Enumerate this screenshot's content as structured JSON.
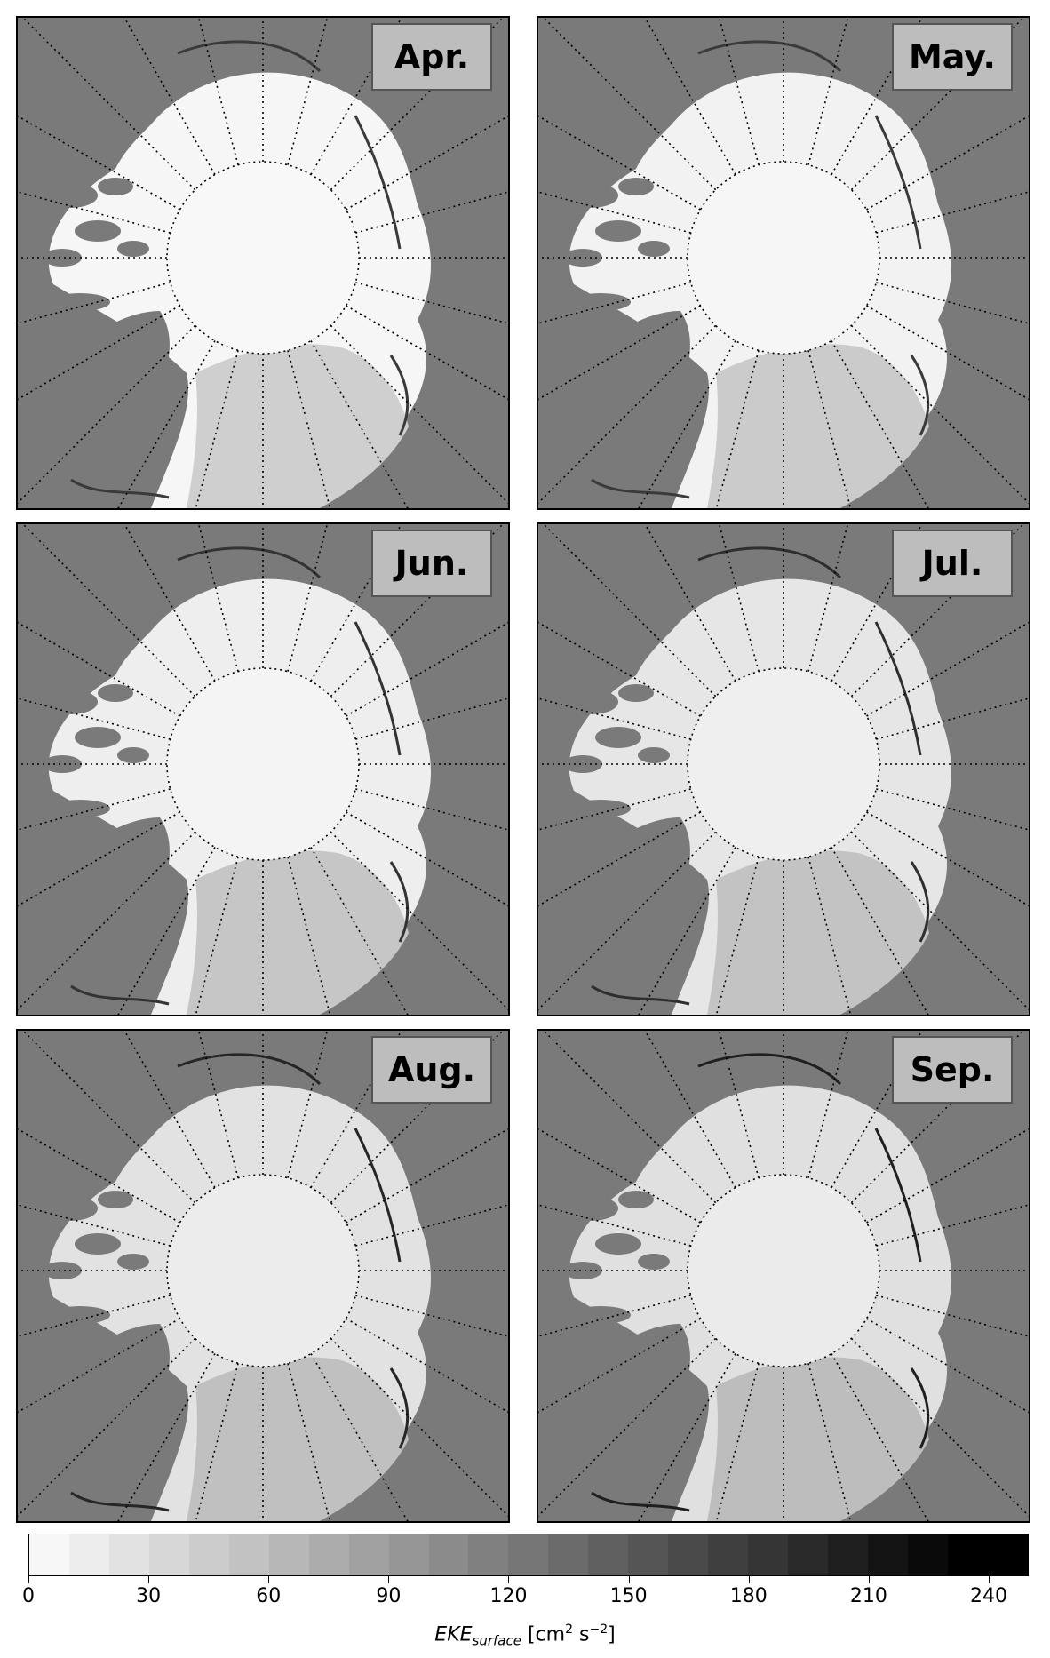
{
  "panels": [
    {
      "month": "Apr.",
      "ice_shade": "#f6f6f6",
      "pole_shade": "#f8f8f8",
      "edge_shade": "#3a3a3a",
      "atlantic_shade": "#cfcfcf"
    },
    {
      "month": "May.",
      "ice_shade": "#f2f2f2",
      "pole_shade": "#f6f6f6",
      "edge_shade": "#3a3a3a",
      "atlantic_shade": "#cbcbcb"
    },
    {
      "month": "Jun.",
      "ice_shade": "#eeeeee",
      "pole_shade": "#f4f4f4",
      "edge_shade": "#333333",
      "atlantic_shade": "#c6c6c6"
    },
    {
      "month": "Jul.",
      "ice_shade": "#e6e6e6",
      "pole_shade": "#efefef",
      "edge_shade": "#2e2e2e",
      "atlantic_shade": "#c3c3c3"
    },
    {
      "month": "Aug.",
      "ice_shade": "#e2e2e2",
      "pole_shade": "#ececec",
      "edge_shade": "#262626",
      "atlantic_shade": "#c0c0c0"
    },
    {
      "month": "Sep.",
      "ice_shade": "#e0e0e0",
      "pole_shade": "#ebebeb",
      "edge_shade": "#1f1f1f",
      "atlantic_shade": "#bdbdbd"
    }
  ],
  "colors": {
    "land": "#7a7a7a",
    "graticule": "#000000",
    "colorbar": [
      "#f7f7f7",
      "#ededed",
      "#e2e2e2",
      "#d7d7d7",
      "#cccccc",
      "#c2c2c2",
      "#b7b7b7",
      "#acacac",
      "#a1a1a1",
      "#969696",
      "#8b8b8b",
      "#808080",
      "#767676",
      "#6b6b6b",
      "#606060",
      "#555555",
      "#4a4a4a",
      "#3f3f3f",
      "#353535",
      "#2a2a2a",
      "#1f1f1f",
      "#141414",
      "#0a0a0a",
      "#000000",
      "#000000"
    ]
  },
  "colorbar": {
    "min": 0,
    "max": 250,
    "ticks": [
      "0",
      "30",
      "60",
      "90",
      "120",
      "150",
      "180",
      "210",
      "240"
    ],
    "label_main": "EKE",
    "label_sub": "surface",
    "label_units_pre": "[cm",
    "label_units_exp1": "2",
    "label_units_mid": " s",
    "label_units_exp2": "−2",
    "label_units_post": "]"
  }
}
